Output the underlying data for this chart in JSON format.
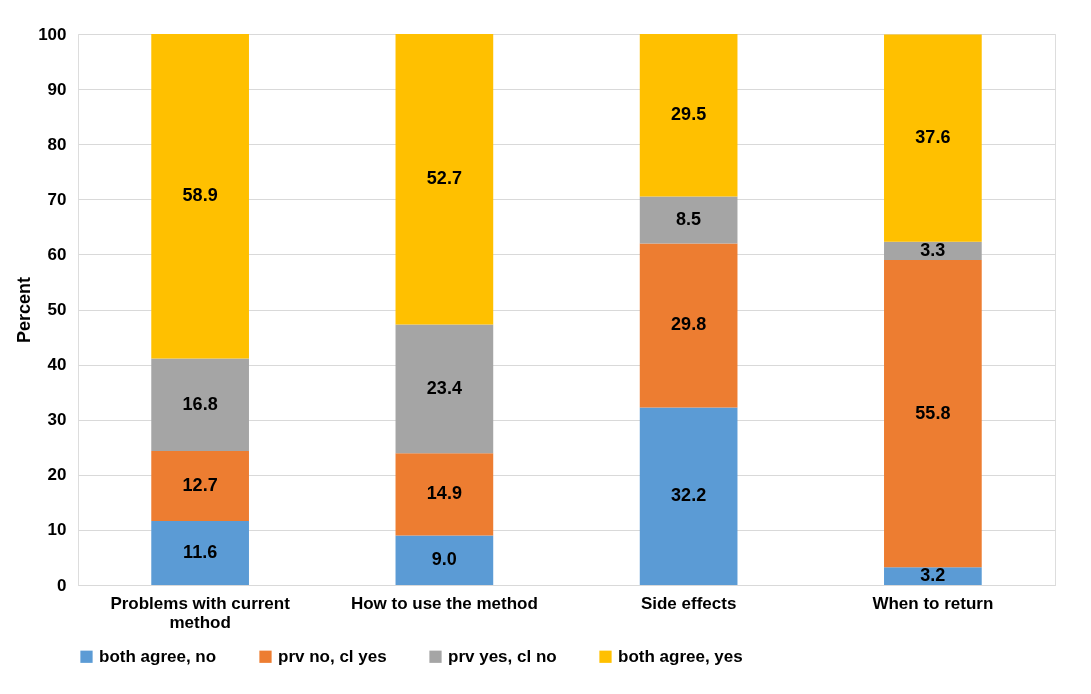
{
  "chart_data": {
    "type": "bar",
    "stacked": true,
    "ylabel": "Percent",
    "categories": [
      "Problems with current method",
      "How to use the method",
      "Side effects",
      "When to return"
    ],
    "series": [
      {
        "name": "both agree, no",
        "color": "#5b9bd5",
        "values": [
          11.6,
          9.0,
          32.2,
          3.2
        ],
        "value_labels": [
          "11.6",
          "9.0",
          "32.2",
          "3.2"
        ]
      },
      {
        "name": "prv no, cl yes",
        "color": "#ed7d31",
        "values": [
          12.7,
          14.9,
          29.8,
          55.8
        ],
        "value_labels": [
          "12.7",
          "14.9",
          "29.8",
          "55.8"
        ]
      },
      {
        "name": "prv yes, cl no",
        "color": "#a5a5a5",
        "values": [
          16.8,
          23.4,
          8.5,
          3.3
        ],
        "value_labels": [
          "16.8",
          "23.4",
          "8.5",
          "3.3"
        ]
      },
      {
        "name": "both agree, yes",
        "color": "#ffc000",
        "values": [
          58.9,
          52.7,
          29.5,
          37.6
        ],
        "value_labels": [
          "58.9",
          "52.7",
          "29.5",
          "37.6"
        ]
      }
    ],
    "ylim": [
      0,
      100
    ],
    "yticks": [
      0,
      10,
      20,
      30,
      40,
      50,
      60,
      70,
      80,
      90,
      100
    ],
    "grid": "y",
    "legend": "bottom"
  }
}
